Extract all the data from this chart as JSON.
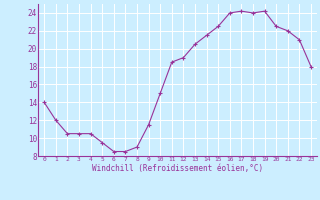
{
  "x": [
    0,
    1,
    2,
    3,
    4,
    5,
    6,
    7,
    8,
    9,
    10,
    11,
    12,
    13,
    14,
    15,
    16,
    17,
    18,
    19,
    20,
    21,
    22,
    23
  ],
  "y": [
    14,
    12,
    10.5,
    10.5,
    10.5,
    9.5,
    8.5,
    8.5,
    9,
    11.5,
    15,
    18.5,
    19,
    20.5,
    21.5,
    22.5,
    24,
    24.2,
    24,
    24.2,
    22.5,
    22,
    21,
    18
  ],
  "line_color": "#993399",
  "marker_color": "#993399",
  "bg_color": "#cceeff",
  "grid_color": "#ffffff",
  "xlabel": "Windchill (Refroidissement éolien,°C)",
  "xlim": [
    -0.5,
    23.5
  ],
  "ylim": [
    8,
    25
  ],
  "yticks": [
    8,
    10,
    12,
    14,
    16,
    18,
    20,
    22,
    24
  ],
  "xticks": [
    0,
    1,
    2,
    3,
    4,
    5,
    6,
    7,
    8,
    9,
    10,
    11,
    12,
    13,
    14,
    15,
    16,
    17,
    18,
    19,
    20,
    21,
    22,
    23
  ],
  "tick_color": "#993399",
  "label_color": "#993399",
  "xticklabels": [
    "0",
    "1",
    "2",
    "3",
    "4",
    "5",
    "6",
    "7",
    "8",
    "9",
    "10",
    "11",
    "12",
    "13",
    "14",
    "15",
    "16",
    "17",
    "18",
    "19",
    "20",
    "21",
    "22",
    "23"
  ],
  "yticklabels": [
    "8",
    "",
    "12",
    "",
    "16",
    "",
    "20",
    "",
    "24"
  ]
}
